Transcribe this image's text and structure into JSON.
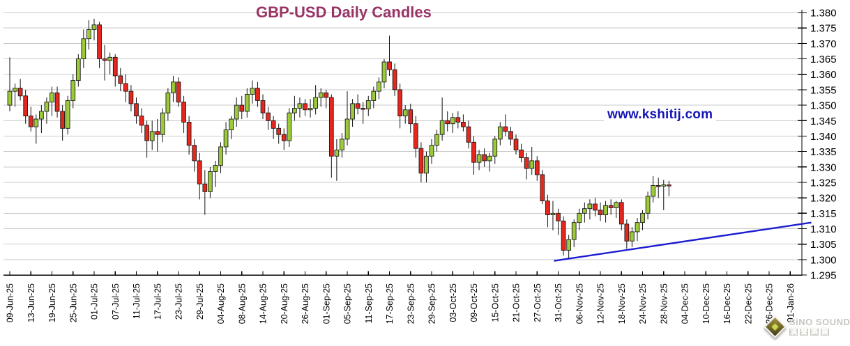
{
  "header": {
    "title": "GBP-USD Daily Candles"
  },
  "watermark": {
    "text": "www.kshitij.com",
    "color": "#1414b8"
  },
  "logo": {
    "brand": "SiNO SOUND",
    "brand_cn": "漢聲集團"
  },
  "chart_data": {
    "type": "candlestick",
    "title": "GBP-USD Daily Candles",
    "grid": true,
    "legend": "none",
    "y_axis": {
      "min": 1.295,
      "max": 1.38,
      "step": 0.005,
      "side": "right",
      "tick_labels": [
        "1.380",
        "1.375",
        "1.370",
        "1.365",
        "1.360",
        "1.355",
        "1.350",
        "1.345",
        "1.340",
        "1.335",
        "1.330",
        "1.325",
        "1.320",
        "1.315",
        "1.310",
        "1.305",
        "1.300",
        "1.295"
      ]
    },
    "x_axis": {
      "candles_per_tick": 4,
      "tick_labels": [
        "09-Jun-25",
        "13-Jun-25",
        "19-Jun-25",
        "25-Jun-25",
        "01-Jul-25",
        "07-Jul-25",
        "11-Jul-25",
        "17-Jul-25",
        "23-Jul-25",
        "29-Jul-25",
        "04-Aug-25",
        "08-Aug-25",
        "14-Aug-25",
        "20-Aug-25",
        "26-Aug-25",
        "01-Sep-25",
        "05-Sep-25",
        "11-Sep-25",
        "17-Sep-25",
        "23-Sep-25",
        "29-Sep-25",
        "03-Oct-25",
        "09-Oct-25",
        "15-Oct-25",
        "21-Oct-25",
        "27-Oct-25",
        "31-Oct-25",
        "06-Nov-25",
        "12-Nov-25",
        "18-Nov-25",
        "24-Nov-25",
        "28-Nov-25",
        "04-Dec-25",
        "10-Dec-25",
        "16-Dec-25",
        "22-Dec-25",
        "26-Dec-25",
        "01-Jan-26"
      ]
    },
    "colors": {
      "up": "#9CCB3A",
      "down": "#E6271E",
      "body_border": "#1a1a1a",
      "wick": "#111111",
      "grid": "#c9c9c9",
      "axis": "#000000",
      "trendline": "#1c1cd0",
      "title_fg": "#993366",
      "title_bg": "#dcdcdc",
      "watermark": "#1414b8"
    },
    "candles": {
      "columns": [
        "date",
        "open",
        "high",
        "low",
        "close"
      ],
      "rows": [
        [
          "09-Jun-25",
          1.35,
          1.3655,
          1.348,
          1.3545
        ],
        [
          "10-Jun-25",
          1.3545,
          1.357,
          1.3495,
          1.3555
        ],
        [
          "11-Jun-25",
          1.3555,
          1.3585,
          1.3515,
          1.353
        ],
        [
          "12-Jun-25",
          1.353,
          1.355,
          1.344,
          1.3465
        ],
        [
          "13-Jun-25",
          1.3465,
          1.3495,
          1.3415,
          1.343
        ],
        [
          "16-Jun-25",
          1.343,
          1.347,
          1.3375,
          1.3455
        ],
        [
          "17-Jun-25",
          1.3455,
          1.35,
          1.341,
          1.348
        ],
        [
          "18-Jun-25",
          1.348,
          1.3525,
          1.344,
          1.351
        ],
        [
          "19-Jun-25",
          1.351,
          1.356,
          1.3465,
          1.354
        ],
        [
          "20-Jun-25",
          1.354,
          1.356,
          1.346,
          1.348
        ],
        [
          "23-Jun-25",
          1.348,
          1.35,
          1.3385,
          1.3425
        ],
        [
          "24-Jun-25",
          1.3425,
          1.353,
          1.3405,
          1.3515
        ],
        [
          "25-Jun-25",
          1.3515,
          1.36,
          1.349,
          1.358
        ],
        [
          "26-Jun-25",
          1.358,
          1.3665,
          1.356,
          1.365
        ],
        [
          "27-Jun-25",
          1.365,
          1.3745,
          1.362,
          1.3715
        ],
        [
          "30-Jun-25",
          1.3715,
          1.3775,
          1.368,
          1.3745
        ],
        [
          "01-Jul-25",
          1.3745,
          1.378,
          1.371,
          1.376
        ],
        [
          "02-Jul-25",
          1.376,
          1.377,
          1.362,
          1.365
        ],
        [
          "03-Jul-25",
          1.365,
          1.3695,
          1.358,
          1.3645
        ],
        [
          "04-Jul-25",
          1.3645,
          1.367,
          1.36,
          1.3655
        ],
        [
          "07-Jul-25",
          1.3655,
          1.3665,
          1.356,
          1.3595
        ],
        [
          "08-Jul-25",
          1.3595,
          1.362,
          1.3545,
          1.357
        ],
        [
          "09-Jul-25",
          1.357,
          1.36,
          1.351,
          1.3545
        ],
        [
          "10-Jul-25",
          1.3545,
          1.3565,
          1.348,
          1.3505
        ],
        [
          "11-Jul-25",
          1.3505,
          1.3525,
          1.344,
          1.3465
        ],
        [
          "14-Jul-25",
          1.3465,
          1.349,
          1.341,
          1.3435
        ],
        [
          "15-Jul-25",
          1.3435,
          1.345,
          1.333,
          1.3385
        ],
        [
          "16-Jul-25",
          1.3385,
          1.345,
          1.3355,
          1.3415
        ],
        [
          "17-Jul-25",
          1.3415,
          1.3455,
          1.335,
          1.3405
        ],
        [
          "18-Jul-25",
          1.3405,
          1.349,
          1.338,
          1.3475
        ],
        [
          "21-Jul-25",
          1.3475,
          1.3555,
          1.345,
          1.354
        ],
        [
          "22-Jul-25",
          1.354,
          1.3595,
          1.351,
          1.3575
        ],
        [
          "23-Jul-25",
          1.3575,
          1.359,
          1.3495,
          1.351
        ],
        [
          "24-Jul-25",
          1.351,
          1.353,
          1.341,
          1.3445
        ],
        [
          "25-Jul-25",
          1.3445,
          1.3465,
          1.334,
          1.337
        ],
        [
          "28-Jul-25",
          1.337,
          1.339,
          1.3285,
          1.332
        ],
        [
          "29-Jul-25",
          1.332,
          1.3345,
          1.3195,
          1.3245
        ],
        [
          "30-Jul-25",
          1.3245,
          1.329,
          1.3145,
          1.322
        ],
        [
          "31-Jul-25",
          1.322,
          1.33,
          1.32,
          1.3285
        ],
        [
          "01-Aug-25",
          1.3285,
          1.332,
          1.3235,
          1.3305
        ],
        [
          "04-Aug-25",
          1.3305,
          1.338,
          1.328,
          1.3365
        ],
        [
          "05-Aug-25",
          1.3365,
          1.3445,
          1.334,
          1.342
        ],
        [
          "06-Aug-25",
          1.342,
          1.3465,
          1.339,
          1.3455
        ],
        [
          "07-Aug-25",
          1.3455,
          1.3525,
          1.343,
          1.35
        ],
        [
          "08-Aug-25",
          1.35,
          1.353,
          1.3455,
          1.348
        ],
        [
          "11-Aug-25",
          1.348,
          1.3555,
          1.346,
          1.3535
        ],
        [
          "12-Aug-25",
          1.3535,
          1.358,
          1.3505,
          1.3555
        ],
        [
          "13-Aug-25",
          1.3555,
          1.3575,
          1.3495,
          1.3515
        ],
        [
          "14-Aug-25",
          1.3515,
          1.3535,
          1.3455,
          1.3475
        ],
        [
          "15-Aug-25",
          1.3475,
          1.3495,
          1.342,
          1.345
        ],
        [
          "18-Aug-25",
          1.345,
          1.3465,
          1.339,
          1.3425
        ],
        [
          "19-Aug-25",
          1.3425,
          1.344,
          1.3375,
          1.3405
        ],
        [
          "20-Aug-25",
          1.3405,
          1.3425,
          1.3355,
          1.3385
        ],
        [
          "21-Aug-25",
          1.3385,
          1.349,
          1.3365,
          1.3475
        ],
        [
          "22-Aug-25",
          1.3475,
          1.353,
          1.345,
          1.349
        ],
        [
          "25-Aug-25",
          1.349,
          1.3525,
          1.346,
          1.3505
        ],
        [
          "26-Aug-25",
          1.3505,
          1.352,
          1.3465,
          1.3485
        ],
        [
          "27-Aug-25",
          1.3485,
          1.352,
          1.346,
          1.349
        ],
        [
          "28-Aug-25",
          1.349,
          1.3565,
          1.347,
          1.3525
        ],
        [
          "29-Aug-25",
          1.3525,
          1.3555,
          1.3495,
          1.354
        ],
        [
          "01-Sep-25",
          1.354,
          1.355,
          1.349,
          1.3525
        ],
        [
          "02-Sep-25",
          1.3525,
          1.3535,
          1.3265,
          1.3335
        ],
        [
          "03-Sep-25",
          1.3335,
          1.339,
          1.3255,
          1.3355
        ],
        [
          "04-Sep-25",
          1.3355,
          1.341,
          1.333,
          1.339
        ],
        [
          "05-Sep-25",
          1.339,
          1.3545,
          1.337,
          1.3455
        ],
        [
          "08-Sep-25",
          1.3455,
          1.352,
          1.343,
          1.3505
        ],
        [
          "09-Sep-25",
          1.3505,
          1.3535,
          1.347,
          1.349
        ],
        [
          "10-Sep-25",
          1.349,
          1.351,
          1.344,
          1.3488
        ],
        [
          "11-Sep-25",
          1.3488,
          1.353,
          1.3465,
          1.3515
        ],
        [
          "12-Sep-25",
          1.3515,
          1.356,
          1.349,
          1.3545
        ],
        [
          "15-Sep-25",
          1.3545,
          1.359,
          1.352,
          1.3575
        ],
        [
          "16-Sep-25",
          1.3575,
          1.365,
          1.3555,
          1.364
        ],
        [
          "17-Sep-25",
          1.364,
          1.3725,
          1.3595,
          1.3615
        ],
        [
          "18-Sep-25",
          1.3615,
          1.3635,
          1.353,
          1.355
        ],
        [
          "19-Sep-25",
          1.355,
          1.357,
          1.3425,
          1.3465
        ],
        [
          "22-Sep-25",
          1.3465,
          1.35,
          1.344,
          1.3485
        ],
        [
          "23-Sep-25",
          1.3485,
          1.3505,
          1.341,
          1.344
        ],
        [
          "24-Sep-25",
          1.344,
          1.3465,
          1.333,
          1.336
        ],
        [
          "25-Sep-25",
          1.336,
          1.338,
          1.325,
          1.328
        ],
        [
          "26-Sep-25",
          1.328,
          1.335,
          1.325,
          1.3335
        ],
        [
          "29-Sep-25",
          1.3335,
          1.339,
          1.331,
          1.337
        ],
        [
          "30-Sep-25",
          1.337,
          1.342,
          1.335,
          1.3405
        ],
        [
          "01-Oct-25",
          1.3405,
          1.3525,
          1.3385,
          1.345
        ],
        [
          "02-Oct-25",
          1.345,
          1.348,
          1.3415,
          1.344
        ],
        [
          "03-Oct-25",
          1.344,
          1.3475,
          1.341,
          1.346
        ],
        [
          "06-Oct-25",
          1.346,
          1.348,
          1.3425,
          1.3445
        ],
        [
          "07-Oct-25",
          1.3445,
          1.347,
          1.3415,
          1.343
        ],
        [
          "08-Oct-25",
          1.343,
          1.345,
          1.336,
          1.338
        ],
        [
          "09-Oct-25",
          1.338,
          1.34,
          1.3275,
          1.3315
        ],
        [
          "10-Oct-25",
          1.3315,
          1.3355,
          1.329,
          1.334
        ],
        [
          "13-Oct-25",
          1.334,
          1.336,
          1.33,
          1.332
        ],
        [
          "14-Oct-25",
          1.332,
          1.3345,
          1.3285,
          1.3335
        ],
        [
          "15-Oct-25",
          1.3335,
          1.34,
          1.331,
          1.339
        ],
        [
          "16-Oct-25",
          1.339,
          1.3445,
          1.337,
          1.343
        ],
        [
          "17-Oct-25",
          1.343,
          1.347,
          1.34,
          1.3415
        ],
        [
          "20-Oct-25",
          1.3415,
          1.343,
          1.337,
          1.339
        ],
        [
          "21-Oct-25",
          1.339,
          1.3405,
          1.334,
          1.3355
        ],
        [
          "22-Oct-25",
          1.3355,
          1.3375,
          1.3315,
          1.333
        ],
        [
          "23-Oct-25",
          1.333,
          1.3345,
          1.326,
          1.3295
        ],
        [
          "24-Oct-25",
          1.3295,
          1.3365,
          1.3275,
          1.332
        ],
        [
          "27-Oct-25",
          1.332,
          1.3335,
          1.3255,
          1.3275
        ],
        [
          "28-Oct-25",
          1.3275,
          1.329,
          1.318,
          1.319
        ],
        [
          "29-Oct-25",
          1.319,
          1.321,
          1.3105,
          1.3145
        ],
        [
          "30-Oct-25",
          1.3145,
          1.319,
          1.3095,
          1.315
        ],
        [
          "31-Oct-25",
          1.315,
          1.3165,
          1.308,
          1.3125
        ],
        [
          "03-Nov-25",
          1.3125,
          1.314,
          1.3013,
          1.303
        ],
        [
          "04-Nov-25",
          1.303,
          1.308,
          1.3005,
          1.3065
        ],
        [
          "05-Nov-25",
          1.3065,
          1.313,
          1.304,
          1.312
        ],
        [
          "06-Nov-25",
          1.312,
          1.3165,
          1.3095,
          1.315
        ],
        [
          "07-Nov-25",
          1.315,
          1.3185,
          1.312,
          1.3165
        ],
        [
          "10-Nov-25",
          1.3165,
          1.3195,
          1.313,
          1.318
        ],
        [
          "11-Nov-25",
          1.318,
          1.32,
          1.314,
          1.316
        ],
        [
          "12-Nov-25",
          1.316,
          1.3185,
          1.3125,
          1.3145
        ],
        [
          "13-Nov-25",
          1.3145,
          1.319,
          1.312,
          1.3175
        ],
        [
          "14-Nov-25",
          1.3175,
          1.3195,
          1.3145,
          1.3168
        ],
        [
          "17-Nov-25",
          1.3168,
          1.319,
          1.3135,
          1.3185
        ],
        [
          "18-Nov-25",
          1.3185,
          1.3195,
          1.3095,
          1.3115
        ],
        [
          "19-Nov-25",
          1.3115,
          1.313,
          1.3035,
          1.306
        ],
        [
          "20-Nov-25",
          1.306,
          1.3105,
          1.304,
          1.309
        ],
        [
          "21-Nov-25",
          1.309,
          1.3135,
          1.306,
          1.312
        ],
        [
          "24-Nov-25",
          1.312,
          1.316,
          1.3095,
          1.315
        ],
        [
          "25-Nov-25",
          1.315,
          1.322,
          1.313,
          1.3205
        ],
        [
          "26-Nov-25",
          1.3205,
          1.327,
          1.3185,
          1.324
        ],
        [
          "27-Nov-25",
          1.324,
          1.3265,
          1.32,
          1.3238
        ],
        [
          "28-Nov-25",
          1.3238,
          1.3258,
          1.316,
          1.3242
        ],
        [
          "01-Dec-25",
          1.3242,
          1.3255,
          1.3205,
          1.324
        ]
      ]
    },
    "trendline": {
      "x1_index": 103.2,
      "price1": 1.2996,
      "x2_index": 152,
      "price2": 1.312
    }
  }
}
